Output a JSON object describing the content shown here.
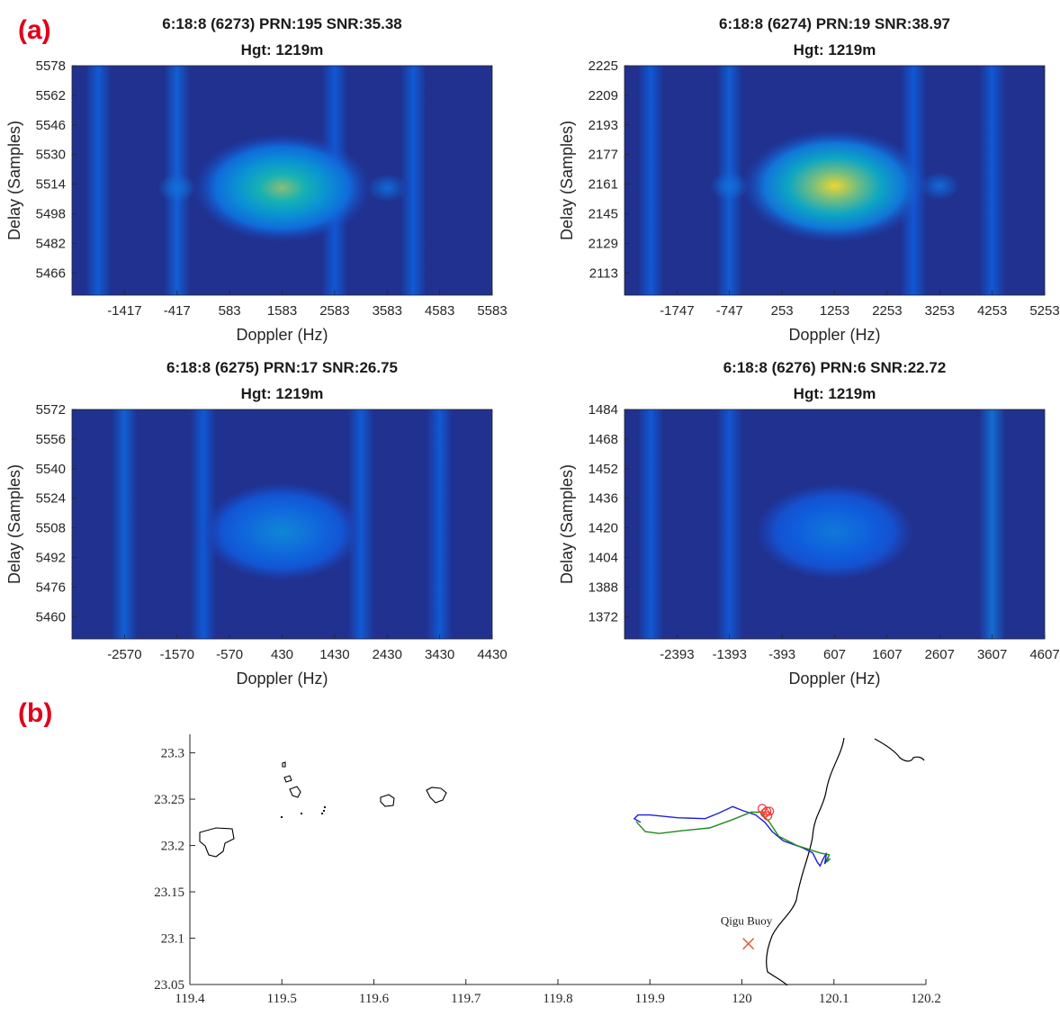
{
  "figure": {
    "label_a": "(a)",
    "label_b": "(b)",
    "colors": {
      "background": "#20318f",
      "label_red": "#e0001a",
      "track_blue": "#1f1fe0",
      "track_green": "#1f8a1f",
      "marker_red": "#ff3030",
      "buoy_cross": "#e8603a"
    }
  },
  "chart_data": [
    {
      "type": "heatmap",
      "title": "6:18:8 (6273) PRN:195 SNR:35.38",
      "subtitle": "Hgt: 1219m",
      "xlabel": "Doppler (Hz)",
      "ylabel": "Delay (Samples)",
      "xticks": [
        "-1417",
        "-417",
        "583",
        "1583",
        "2583",
        "3583",
        "4583",
        "5583"
      ],
      "yticks": [
        "5578",
        "5562",
        "5546",
        "5530",
        "5514",
        "5498",
        "5482",
        "5466"
      ],
      "xlim": [
        -2417,
        5583
      ],
      "ylim": [
        5454,
        5578
      ],
      "peak": {
        "doppler": 1583,
        "delay": 5512,
        "intensity": 0.78
      },
      "sidelobes": [
        {
          "doppler": -417,
          "delay": 5512,
          "intensity": 0.12
        },
        {
          "doppler": 3583,
          "delay": 5512,
          "intensity": 0.1
        }
      ],
      "stripes": [
        {
          "doppler": -1917,
          "intensity": 0.06
        },
        {
          "doppler": -417,
          "intensity": 0.08
        },
        {
          "doppler": 2583,
          "intensity": 0.05
        },
        {
          "doppler": 4083,
          "intensity": 0.06
        }
      ]
    },
    {
      "type": "heatmap",
      "title": "6:18:8 (6274) PRN:19 SNR:38.97",
      "subtitle": "Hgt: 1219m",
      "xlabel": "Doppler (Hz)",
      "ylabel": "Delay (Samples)",
      "xticks": [
        "-1747",
        "-747",
        "253",
        "1253",
        "2253",
        "3253",
        "4253",
        "5253"
      ],
      "yticks": [
        "2225",
        "2209",
        "2193",
        "2177",
        "2161",
        "2145",
        "2129",
        "2113"
      ],
      "xlim": [
        -2747,
        5253
      ],
      "ylim": [
        2101,
        2225
      ],
      "peak": {
        "doppler": 1253,
        "delay": 2160,
        "intensity": 0.95
      },
      "sidelobes": [
        {
          "doppler": -747,
          "delay": 2160,
          "intensity": 0.12
        },
        {
          "doppler": 3253,
          "delay": 2160,
          "intensity": 0.1
        }
      ],
      "stripes": [
        {
          "doppler": -2247,
          "intensity": 0.05
        },
        {
          "doppler": -747,
          "intensity": 0.07
        },
        {
          "doppler": 2753,
          "intensity": 0.05
        },
        {
          "doppler": 4253,
          "intensity": 0.05
        }
      ]
    },
    {
      "type": "heatmap",
      "title": "6:18:8 (6275) PRN:17 SNR:26.75",
      "subtitle": "Hgt: 1219m",
      "xlabel": "Doppler (Hz)",
      "ylabel": "Delay (Samples)",
      "xticks": [
        "-2570",
        "-1570",
        "-570",
        "430",
        "1430",
        "2430",
        "3430",
        "4430"
      ],
      "yticks": [
        "5572",
        "5556",
        "5540",
        "5524",
        "5508",
        "5492",
        "5476",
        "5460"
      ],
      "xlim": [
        -3570,
        4430
      ],
      "ylim": [
        5448,
        5572
      ],
      "peak": {
        "doppler": 430,
        "delay": 5506,
        "intensity": 0.42
      },
      "sidelobes": [],
      "stripes": [
        {
          "doppler": -2570,
          "intensity": 0.08
        },
        {
          "doppler": -1070,
          "intensity": 0.05
        },
        {
          "doppler": 1930,
          "intensity": 0.06
        },
        {
          "doppler": 3430,
          "intensity": 0.05
        }
      ]
    },
    {
      "type": "heatmap",
      "title": "6:18:8 (6276) PRN:6 SNR:22.72",
      "subtitle": "Hgt: 1219m",
      "xlabel": "Doppler (Hz)",
      "ylabel": "Delay (Samples)",
      "xticks": [
        "-2393",
        "-1393",
        "-393",
        "607",
        "1607",
        "2607",
        "3607",
        "4607"
      ],
      "yticks": [
        "1484",
        "1468",
        "1452",
        "1436",
        "1420",
        "1404",
        "1388",
        "1372"
      ],
      "xlim": [
        -3393,
        4607
      ],
      "ylim": [
        1360,
        1484
      ],
      "peak": {
        "doppler": 607,
        "delay": 1418,
        "intensity": 0.36
      },
      "sidelobes": [],
      "stripes": [
        {
          "doppler": -2893,
          "intensity": 0.05
        },
        {
          "doppler": -1393,
          "intensity": 0.04
        },
        {
          "doppler": 3607,
          "intensity": 0.14
        }
      ]
    },
    {
      "type": "line",
      "title": "",
      "xlabel": "",
      "ylabel": "",
      "xlim": [
        119.4,
        120.2
      ],
      "ylim": [
        23.05,
        23.32
      ],
      "xticks": [
        "119.4",
        "119.5",
        "119.6",
        "119.7",
        "119.8",
        "119.9",
        "120",
        "120.1",
        "120.2"
      ],
      "yticks": [
        "23.3",
        "23.25",
        "23.2",
        "23.15",
        "23.1",
        "23.05"
      ],
      "annotation": {
        "text": "Qigu Buoy",
        "x": 120.005,
        "y": 23.094
      },
      "series": [
        {
          "name": "blue track",
          "color": "#1f1fe0",
          "points": [
            [
              119.89,
              23.225
            ],
            [
              119.883,
              23.229
            ],
            [
              119.887,
              23.233
            ],
            [
              119.9,
              23.233
            ],
            [
              119.93,
              23.23
            ],
            [
              119.96,
              23.229
            ],
            [
              119.975,
              23.235
            ],
            [
              119.99,
              23.242
            ],
            [
              120.0,
              23.238
            ],
            [
              120.015,
              23.233
            ],
            [
              120.025,
              23.225
            ],
            [
              120.033,
              23.215
            ],
            [
              120.045,
              23.205
            ],
            [
              120.065,
              23.198
            ],
            [
              120.077,
              23.192
            ],
            [
              120.082,
              23.182
            ],
            [
              120.085,
              23.178
            ],
            [
              120.088,
              23.185
            ],
            [
              120.092,
              23.192
            ],
            [
              120.09,
              23.18
            ],
            [
              120.094,
              23.188
            ]
          ]
        },
        {
          "name": "green track",
          "color": "#1f8a1f",
          "points": [
            [
              119.885,
              23.226
            ],
            [
              119.895,
              23.215
            ],
            [
              119.91,
              23.213
            ],
            [
              119.935,
              23.216
            ],
            [
              119.965,
              23.219
            ],
            [
              119.99,
              23.228
            ],
            [
              120.01,
              23.236
            ],
            [
              120.02,
              23.236
            ],
            [
              120.03,
              23.225
            ],
            [
              120.04,
              23.21
            ],
            [
              120.06,
              23.2
            ],
            [
              120.085,
              23.192
            ],
            [
              120.095,
              23.19
            ],
            [
              120.092,
              23.182
            ],
            [
              120.096,
              23.186
            ]
          ]
        }
      ],
      "markers": [
        {
          "kind": "circle",
          "color": "#ff3030",
          "points": [
            [
              120.022,
              23.24
            ],
            [
              120.025,
              23.235
            ],
            [
              120.028,
              23.232
            ],
            [
              120.03,
              23.237
            ],
            [
              120.027,
              23.237
            ]
          ]
        },
        {
          "kind": "cross",
          "color": "#e8603a",
          "points": [
            [
              120.007,
              23.094
            ]
          ]
        }
      ]
    }
  ]
}
